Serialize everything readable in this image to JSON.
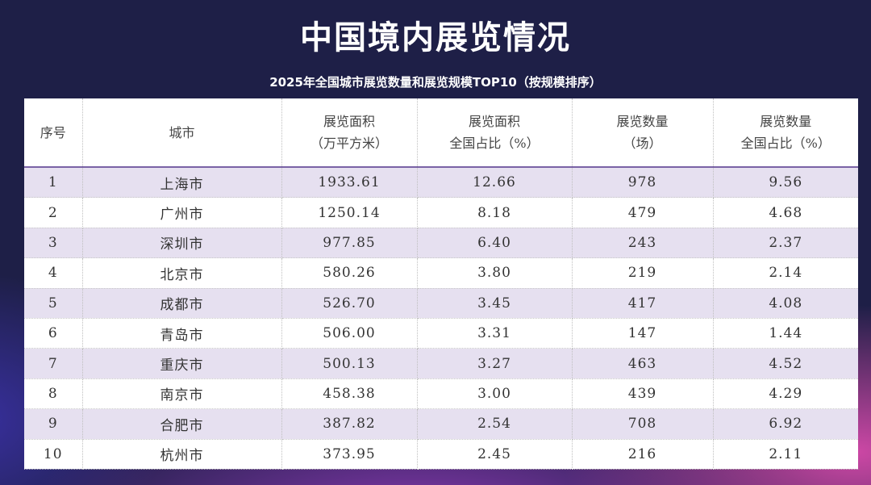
{
  "title": "中国境内展览情况",
  "subtitle": "2025年全国城市展览数量和展览规模TOP10（按规模排序）",
  "headers": [
    {
      "line1": "序号",
      "line2": ""
    },
    {
      "line1": "城市",
      "line2": ""
    },
    {
      "line1": "展览面积",
      "line2": "（万平方米）"
    },
    {
      "line1": "展览面积",
      "line2": "全国占比（%）"
    },
    {
      "line1": "展览数量",
      "line2": "（场）"
    },
    {
      "line1": "展览数量",
      "line2": "全国占比（%）"
    }
  ],
  "rows": [
    [
      "1",
      "上海市",
      "1933.61",
      "12.66",
      "978",
      "9.56"
    ],
    [
      "2",
      "广州市",
      "1250.14",
      "8.18",
      "479",
      "4.68"
    ],
    [
      "3",
      "深圳市",
      "977.85",
      "6.40",
      "243",
      "2.37"
    ],
    [
      "4",
      "北京市",
      "580.26",
      "3.80",
      "219",
      "2.14"
    ],
    [
      "5",
      "成都市",
      "526.70",
      "3.45",
      "417",
      "4.08"
    ],
    [
      "6",
      "青岛市",
      "506.00",
      "3.31",
      "147",
      "1.44"
    ],
    [
      "7",
      "重庆市",
      "500.13",
      "3.27",
      "463",
      "4.52"
    ],
    [
      "8",
      "南京市",
      "458.38",
      "3.00",
      "439",
      "4.29"
    ],
    [
      "9",
      "合肥市",
      "387.82",
      "2.54",
      "708",
      "6.92"
    ],
    [
      "10",
      "杭州市",
      "373.95",
      "2.45",
      "216",
      "2.11"
    ]
  ]
}
